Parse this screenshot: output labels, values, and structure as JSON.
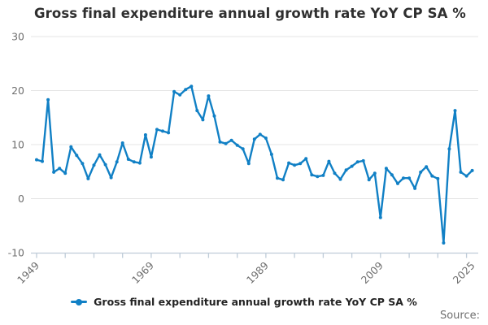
{
  "title": "Gross final expenditure annual growth rate YoY CP SA %",
  "legend": {
    "label": "Gross final expenditure annual growth rate YoY CP SA %"
  },
  "source_label": "Source:",
  "chart_data": {
    "type": "line",
    "title": "Gross final expenditure annual growth rate YoY CP SA %",
    "xlabel": "",
    "ylabel": "",
    "xlim": [
      1949,
      2025
    ],
    "ylim": [
      -10,
      30
    ],
    "grid": "horizontal",
    "legend_position": "bottom",
    "marker": "dot",
    "x": [
      1949,
      1950,
      1951,
      1952,
      1953,
      1954,
      1955,
      1956,
      1957,
      1958,
      1959,
      1960,
      1961,
      1962,
      1963,
      1964,
      1965,
      1966,
      1967,
      1968,
      1969,
      1970,
      1971,
      1972,
      1973,
      1974,
      1975,
      1976,
      1977,
      1978,
      1979,
      1980,
      1981,
      1982,
      1983,
      1984,
      1985,
      1986,
      1987,
      1988,
      1989,
      1990,
      1991,
      1992,
      1993,
      1994,
      1995,
      1996,
      1997,
      1998,
      1999,
      2000,
      2001,
      2002,
      2003,
      2004,
      2005,
      2006,
      2007,
      2008,
      2009,
      2010,
      2011,
      2012,
      2013,
      2014,
      2015,
      2016,
      2017,
      2018,
      2019,
      2020,
      2021,
      2022,
      2023,
      2024,
      2025
    ],
    "series": [
      {
        "name": "Gross final expenditure annual growth rate YoY CP SA %",
        "values": [
          7.2,
          6.9,
          18.3,
          4.9,
          5.6,
          4.7,
          9.6,
          8.0,
          6.5,
          3.7,
          6.2,
          8.1,
          6.3,
          3.9,
          6.8,
          10.3,
          7.3,
          6.8,
          6.6,
          11.8,
          7.7,
          12.8,
          12.5,
          12.2,
          19.8,
          19.2,
          20.2,
          20.8,
          16.3,
          14.6,
          19.0,
          15.3,
          10.5,
          10.2,
          10.8,
          9.9,
          9.2,
          6.5,
          11.0,
          11.9,
          11.2,
          8.2,
          3.8,
          3.5,
          6.6,
          6.2,
          6.5,
          7.4,
          4.4,
          4.1,
          4.3,
          6.9,
          4.7,
          3.6,
          5.3,
          6.0,
          6.8,
          7.0,
          3.5,
          4.7,
          -3.5,
          5.6,
          4.4,
          2.8,
          3.8,
          3.8,
          1.9,
          4.9,
          5.9,
          4.2,
          3.7,
          -8.2,
          9.2,
          16.3,
          4.9,
          4.2,
          5.2
        ]
      }
    ],
    "yticks": [
      30,
      20,
      10,
      0,
      -10
    ],
    "xticks": [
      1949,
      1954,
      1959,
      1964,
      1969,
      1974,
      1979,
      1984,
      1989,
      1994,
      1999,
      2004,
      2009,
      2014,
      2019,
      2024
    ],
    "xtick_labels": [
      {
        "year": 1949,
        "label": "1949"
      },
      {
        "year": 1969,
        "label": "1969"
      },
      {
        "year": 1989,
        "label": "1989"
      },
      {
        "year": 2009,
        "label": "2009"
      },
      {
        "year": 2025,
        "label": "2025"
      }
    ],
    "colors": {
      "line": "#1180c5",
      "grid": "#e4e4e4",
      "axis": "#bfccd8",
      "tick_text": "#6f6f6f",
      "title_text": "#2f2f2f"
    }
  }
}
